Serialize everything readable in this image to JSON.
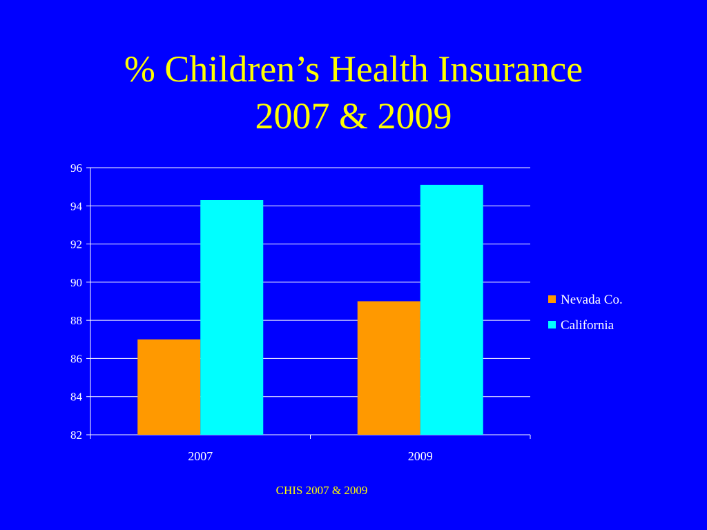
{
  "slide": {
    "title_line1": "% Children’s Health Insurance",
    "title_line2": "2007 & 2009",
    "source": "CHIS 2007 & 2009"
  },
  "colors": {
    "background": "#0000ff",
    "title": "#ffff00",
    "axis_text": "#ffffff",
    "gridline": "#ffffff"
  },
  "chart_data": {
    "type": "bar",
    "categories": [
      "2007",
      "2009"
    ],
    "series": [
      {
        "name": "Nevada Co.",
        "values": [
          87,
          89
        ],
        "color": "#ff9900"
      },
      {
        "name": "California",
        "values": [
          94.3,
          95.1
        ],
        "color": "#00ffff"
      }
    ],
    "ylim": [
      82,
      96
    ],
    "yticks": [
      82,
      84,
      86,
      88,
      90,
      92,
      94,
      96
    ],
    "grid": true,
    "legend": "right",
    "title": "",
    "xlabel": "",
    "ylabel": ""
  }
}
